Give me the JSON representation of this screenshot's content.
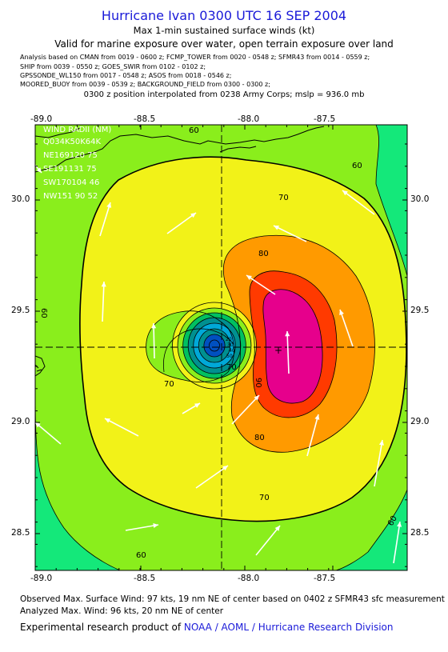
{
  "header": {
    "title": "Hurricane Ivan 0300 UTC 16 SEP 2004",
    "subtitle": "Max 1-min sustained surface winds (kt)",
    "valid": "Valid for marine exposure over water, open terrain exposure over land"
  },
  "analysis_sources": [
    "Analysis based on  CMAN from 0019 - 0600 z;  FCMP_TOWER from 0020 - 0548 z;  SFMR43 from 0014 - 0559 z;",
    "SHIP from 0039 - 0550 z;  GOES_SWIR from 0102 - 0102 z;",
    "GPSSONDE_WL150 from 0017 - 0548 z;  ASOS from 0018 - 0546 z;",
    "MOORED_BUOY from 0039 - 0539 z;  BACKGROUND_FIELD from 0300 - 0300 z;"
  ],
  "position_note": "0300 z position interpolated from 0238 Army Corps; mslp = 936.0 mb",
  "axes": {
    "lon_ticks": [
      "-89.0",
      "-88.5",
      "-88.0",
      "-87.5"
    ],
    "lat_ticks": [
      "30.0",
      "29.5",
      "29.0",
      "28.5"
    ]
  },
  "wind_radii": {
    "title": "WIND RADII (NM)",
    "header": "Q034K50K64K",
    "rows": [
      "NE169120 75",
      "SE191131 75",
      "SW170104 46",
      "NW151 90 52"
    ]
  },
  "contour_labels": [
    "60",
    "60",
    "60",
    "60",
    "60",
    "70",
    "70",
    "70",
    "70",
    "80",
    "80",
    "90",
    "50",
    "40",
    "30",
    "20"
  ],
  "colors": {
    "band_50": "#14e87a",
    "band_60": "#8aee1c",
    "band_70": "#f2f218",
    "band_80": "#ff9a00",
    "band_90": "#ff3a00",
    "band_95": "#e6008c",
    "inner_green": "#00c060",
    "inner_teal": "#009090",
    "inner_cyan": "#00a8d8",
    "inner_blue": "#0050c0",
    "title_blue": "#1a1ad8"
  },
  "footer": {
    "observed": "Observed Max. Surface Wind: 97 kts, 19 nm NE of center based on 0402 z SFMR43 sfc measurement",
    "analyzed": "Analyzed Max. Wind: 96 kts, 20 nm NE of center",
    "credit_prefix": "Experimental research product of ",
    "credit_org": "NOAA / AOML / Hurricane Research Division"
  }
}
